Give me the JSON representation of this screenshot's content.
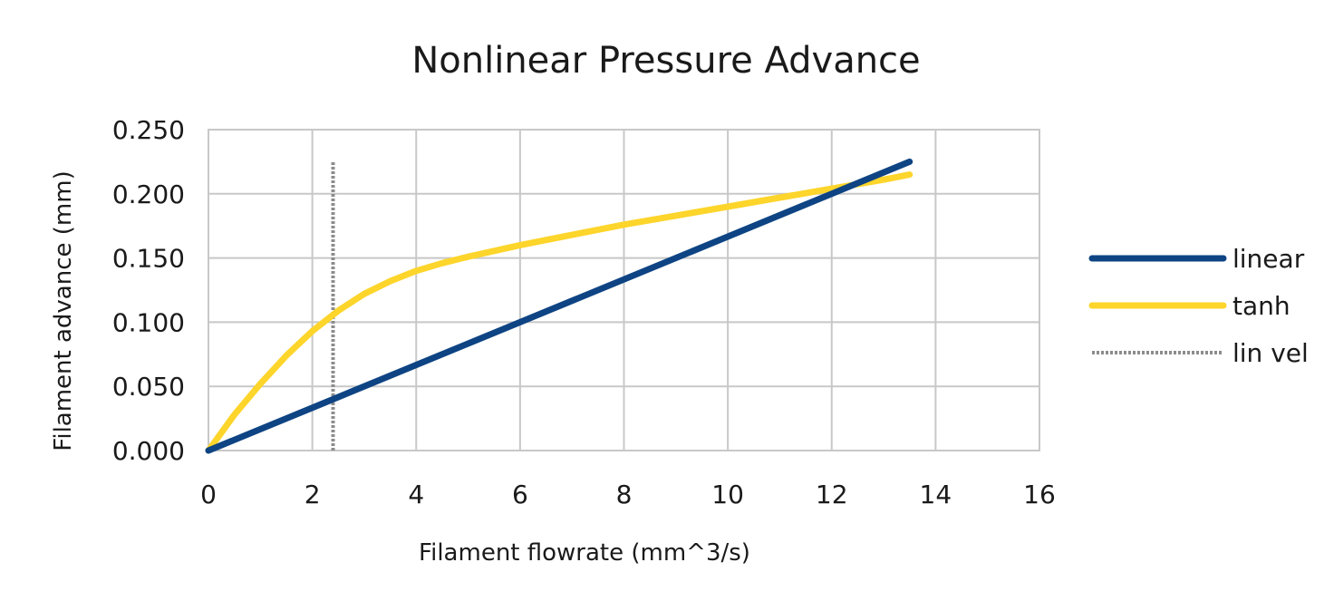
{
  "chart_data": {
    "type": "line",
    "title": "Nonlinear Pressure Advance",
    "xlabel": "Filament flowrate (mm^3/s)",
    "ylabel": "Filament advance (mm)",
    "xlim": [
      0,
      16
    ],
    "ylim": [
      0,
      0.25
    ],
    "x_ticks": [
      "0",
      "2",
      "4",
      "6",
      "8",
      "10",
      "12",
      "14",
      "16"
    ],
    "y_ticks": [
      "0.000",
      "0.050",
      "0.100",
      "0.150",
      "0.200",
      "0.250"
    ],
    "grid": true,
    "legend_position": "right",
    "series": [
      {
        "name": "linear",
        "color": "#0e4483",
        "style": "solid",
        "points": [
          [
            0,
            0.0
          ],
          [
            13.5,
            0.225
          ]
        ]
      },
      {
        "name": "tanh",
        "color": "#fdd52b",
        "style": "solid",
        "points": [
          [
            0,
            0.0
          ],
          [
            0.5,
            0.028
          ],
          [
            1.0,
            0.052
          ],
          [
            1.5,
            0.074
          ],
          [
            2.0,
            0.093
          ],
          [
            2.5,
            0.109
          ],
          [
            3.0,
            0.122
          ],
          [
            3.5,
            0.132
          ],
          [
            4.0,
            0.14
          ],
          [
            4.5,
            0.146
          ],
          [
            5.0,
            0.151
          ],
          [
            6.0,
            0.16
          ],
          [
            7.0,
            0.168
          ],
          [
            8.0,
            0.176
          ],
          [
            9.0,
            0.183
          ],
          [
            10.0,
            0.19
          ],
          [
            11.0,
            0.197
          ],
          [
            12.0,
            0.204
          ],
          [
            13.0,
            0.211
          ],
          [
            13.5,
            0.215
          ]
        ]
      },
      {
        "name": "lin vel",
        "color": "#8c8c8c",
        "style": "dotted",
        "points": [
          [
            2.4,
            0.0
          ],
          [
            2.4,
            0.225
          ]
        ]
      }
    ]
  }
}
